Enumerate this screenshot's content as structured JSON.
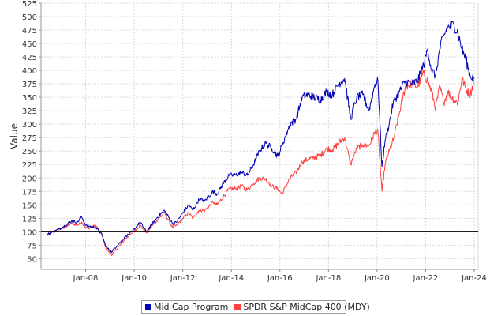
{
  "chart_data": {
    "type": "line",
    "title": "",
    "xlabel": "",
    "ylabel": "Value",
    "ylim": [
      30,
      525
    ],
    "xlim": [
      "2006-03-01",
      "2024-03-01"
    ],
    "y_ticks": [
      50,
      75,
      100,
      125,
      150,
      175,
      200,
      225,
      250,
      275,
      300,
      325,
      350,
      375,
      400,
      425,
      450,
      475,
      500,
      525
    ],
    "x_ticks": [
      "Jan-08",
      "Jan-10",
      "Jan-12",
      "Jan-14",
      "Jan-16",
      "Jan-18",
      "Jan-20",
      "Jan-22",
      "Jan-24"
    ],
    "x_tick_dates": [
      "2008-01-01",
      "2010-01-01",
      "2012-01-01",
      "2014-01-01",
      "2016-01-01",
      "2018-01-01",
      "2020-01-01",
      "2022-01-01",
      "2024-01-01"
    ],
    "reference_line": 100,
    "grid": true,
    "legend_position": "bottom",
    "series": [
      {
        "name": "Mid Cap Program",
        "color": "#0000b4",
        "points": [
          [
            "2006-06-01",
            95
          ],
          [
            "2006-09-01",
            100
          ],
          [
            "2006-12-01",
            105
          ],
          [
            "2007-03-01",
            112
          ],
          [
            "2007-06-01",
            120
          ],
          [
            "2007-09-01",
            118
          ],
          [
            "2007-11-01",
            128
          ],
          [
            "2008-01-01",
            112
          ],
          [
            "2008-03-01",
            110
          ],
          [
            "2008-06-01",
            108
          ],
          [
            "2008-09-01",
            95
          ],
          [
            "2008-11-01",
            72
          ],
          [
            "2009-02-01",
            62
          ],
          [
            "2009-03-01",
            68
          ],
          [
            "2009-06-01",
            80
          ],
          [
            "2009-09-01",
            92
          ],
          [
            "2009-12-01",
            100
          ],
          [
            "2010-04-01",
            118
          ],
          [
            "2010-07-01",
            100
          ],
          [
            "2010-12-01",
            125
          ],
          [
            "2011-04-01",
            140
          ],
          [
            "2011-08-01",
            115
          ],
          [
            "2011-10-01",
            118
          ],
          [
            "2012-01-01",
            135
          ],
          [
            "2012-04-01",
            150
          ],
          [
            "2012-06-01",
            140
          ],
          [
            "2012-09-01",
            160
          ],
          [
            "2012-12-01",
            158
          ],
          [
            "2013-04-01",
            175
          ],
          [
            "2013-06-01",
            170
          ],
          [
            "2013-09-01",
            190
          ],
          [
            "2013-12-01",
            205
          ],
          [
            "2014-03-01",
            205
          ],
          [
            "2014-06-01",
            210
          ],
          [
            "2014-09-01",
            205
          ],
          [
            "2014-12-01",
            225
          ],
          [
            "2015-03-01",
            250
          ],
          [
            "2015-06-01",
            265
          ],
          [
            "2015-09-01",
            255
          ],
          [
            "2015-12-01",
            240
          ],
          [
            "2016-02-01",
            260
          ],
          [
            "2016-06-01",
            300
          ],
          [
            "2016-09-01",
            310
          ],
          [
            "2016-12-01",
            350
          ],
          [
            "2017-03-01",
            355
          ],
          [
            "2017-06-01",
            350
          ],
          [
            "2017-09-01",
            345
          ],
          [
            "2017-12-01",
            360
          ],
          [
            "2018-03-01",
            355
          ],
          [
            "2018-06-01",
            375
          ],
          [
            "2018-09-01",
            385
          ],
          [
            "2018-12-01",
            310
          ],
          [
            "2019-03-01",
            350
          ],
          [
            "2019-06-01",
            355
          ],
          [
            "2019-09-01",
            325
          ],
          [
            "2019-12-01",
            375
          ],
          [
            "2020-01-15",
            380
          ],
          [
            "2020-03-15",
            220
          ],
          [
            "2020-05-01",
            270
          ],
          [
            "2020-07-01",
            300
          ],
          [
            "2020-09-01",
            340
          ],
          [
            "2020-12-01",
            360
          ],
          [
            "2021-03-01",
            380
          ],
          [
            "2021-06-01",
            375
          ],
          [
            "2021-09-01",
            380
          ],
          [
            "2021-12-01",
            410
          ],
          [
            "2022-02-01",
            440
          ],
          [
            "2022-04-01",
            400
          ],
          [
            "2022-06-01",
            390
          ],
          [
            "2022-08-01",
            440
          ],
          [
            "2022-10-01",
            465
          ],
          [
            "2022-12-01",
            480
          ],
          [
            "2023-03-01",
            485
          ],
          [
            "2023-05-01",
            470
          ],
          [
            "2023-07-01",
            440
          ],
          [
            "2023-09-01",
            420
          ],
          [
            "2023-11-01",
            390
          ],
          [
            "2024-01-01",
            385
          ]
        ]
      },
      {
        "name": "SPDR S&P MidCap 400 (MDY)",
        "color": "#ff4040",
        "points": [
          [
            "2006-06-01",
            93
          ],
          [
            "2006-09-01",
            100
          ],
          [
            "2006-12-01",
            105
          ],
          [
            "2007-03-01",
            108
          ],
          [
            "2007-06-01",
            116
          ],
          [
            "2007-09-01",
            112
          ],
          [
            "2007-11-01",
            118
          ],
          [
            "2008-01-01",
            108
          ],
          [
            "2008-03-01",
            107
          ],
          [
            "2008-06-01",
            112
          ],
          [
            "2008-09-01",
            95
          ],
          [
            "2008-11-01",
            68
          ],
          [
            "2009-02-01",
            57
          ],
          [
            "2009-03-01",
            62
          ],
          [
            "2009-06-01",
            75
          ],
          [
            "2009-09-01",
            88
          ],
          [
            "2009-12-01",
            97
          ],
          [
            "2010-04-01",
            112
          ],
          [
            "2010-07-01",
            98
          ],
          [
            "2010-12-01",
            120
          ],
          [
            "2011-04-01",
            135
          ],
          [
            "2011-08-01",
            108
          ],
          [
            "2011-10-01",
            112
          ],
          [
            "2012-01-01",
            125
          ],
          [
            "2012-04-01",
            135
          ],
          [
            "2012-06-01",
            125
          ],
          [
            "2012-09-01",
            140
          ],
          [
            "2012-12-01",
            140
          ],
          [
            "2013-04-01",
            155
          ],
          [
            "2013-06-01",
            150
          ],
          [
            "2013-09-01",
            165
          ],
          [
            "2013-12-01",
            180
          ],
          [
            "2014-03-01",
            180
          ],
          [
            "2014-06-01",
            185
          ],
          [
            "2014-09-01",
            178
          ],
          [
            "2014-12-01",
            190
          ],
          [
            "2015-03-01",
            200
          ],
          [
            "2015-06-01",
            198
          ],
          [
            "2015-09-01",
            185
          ],
          [
            "2015-12-01",
            180
          ],
          [
            "2016-02-01",
            170
          ],
          [
            "2016-06-01",
            200
          ],
          [
            "2016-09-01",
            210
          ],
          [
            "2016-12-01",
            230
          ],
          [
            "2017-03-01",
            235
          ],
          [
            "2017-06-01",
            238
          ],
          [
            "2017-09-01",
            242
          ],
          [
            "2017-12-01",
            255
          ],
          [
            "2018-03-01",
            252
          ],
          [
            "2018-06-01",
            265
          ],
          [
            "2018-09-01",
            275
          ],
          [
            "2018-12-01",
            225
          ],
          [
            "2019-03-01",
            255
          ],
          [
            "2019-06-01",
            262
          ],
          [
            "2019-09-01",
            260
          ],
          [
            "2019-12-01",
            285
          ],
          [
            "2020-01-15",
            285
          ],
          [
            "2020-03-15",
            175
          ],
          [
            "2020-05-01",
            225
          ],
          [
            "2020-07-01",
            250
          ],
          [
            "2020-09-01",
            270
          ],
          [
            "2020-12-01",
            320
          ],
          [
            "2021-03-01",
            370
          ],
          [
            "2021-06-01",
            375
          ],
          [
            "2021-09-01",
            370
          ],
          [
            "2021-12-01",
            395
          ],
          [
            "2022-02-01",
            380
          ],
          [
            "2022-04-01",
            360
          ],
          [
            "2022-06-01",
            330
          ],
          [
            "2022-08-01",
            370
          ],
          [
            "2022-10-01",
            340
          ],
          [
            "2022-12-01",
            360
          ],
          [
            "2023-03-01",
            345
          ],
          [
            "2023-05-01",
            340
          ],
          [
            "2023-07-01",
            385
          ],
          [
            "2023-09-01",
            365
          ],
          [
            "2023-11-01",
            355
          ],
          [
            "2024-01-01",
            380
          ]
        ]
      }
    ]
  }
}
